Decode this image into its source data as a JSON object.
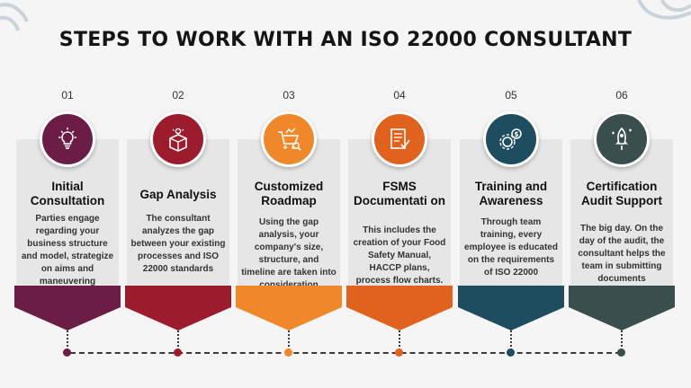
{
  "title": "STEPS TO WORK WITH AN ISO 22000 CONSULTANT",
  "steps": [
    {
      "number": "01",
      "title": "Initial Consultation",
      "description": "Parties engage regarding your business structure and model, strategize on aims and maneuvering",
      "color": "#6b1d45",
      "icon": "lightbulb-icon"
    },
    {
      "number": "02",
      "title": "Gap Analysis",
      "description": "The consultant analyzes the gap between your existing processes and ISO 22000 standards",
      "color": "#9c1b2c",
      "icon": "box-idea-icon"
    },
    {
      "number": "03",
      "title": "Customized Roadmap",
      "description": "Using the gap analysis, your company's size, structure, and timeline are taken into consideration",
      "color": "#f0882a",
      "icon": "cart-chart-icon"
    },
    {
      "number": "04",
      "title": "FSMS Documentati on",
      "description": "This includes the creation of your Food Safety Manual, HACCP plans, process flow charts.",
      "color": "#e0621c",
      "icon": "checklist-icon"
    },
    {
      "number": "05",
      "title": "Training and Awareness",
      "description": "Through team training, every employee is educated on the requirements of ISO 22000",
      "color": "#1f4d60",
      "icon": "gear-dollar-icon"
    },
    {
      "number": "06",
      "title": "Certification Audit Support",
      "description": "The big day. On the day of the audit, the consultant helps the team in submitting documents",
      "color": "#3a4e4e",
      "icon": "rocket-icon"
    }
  ]
}
